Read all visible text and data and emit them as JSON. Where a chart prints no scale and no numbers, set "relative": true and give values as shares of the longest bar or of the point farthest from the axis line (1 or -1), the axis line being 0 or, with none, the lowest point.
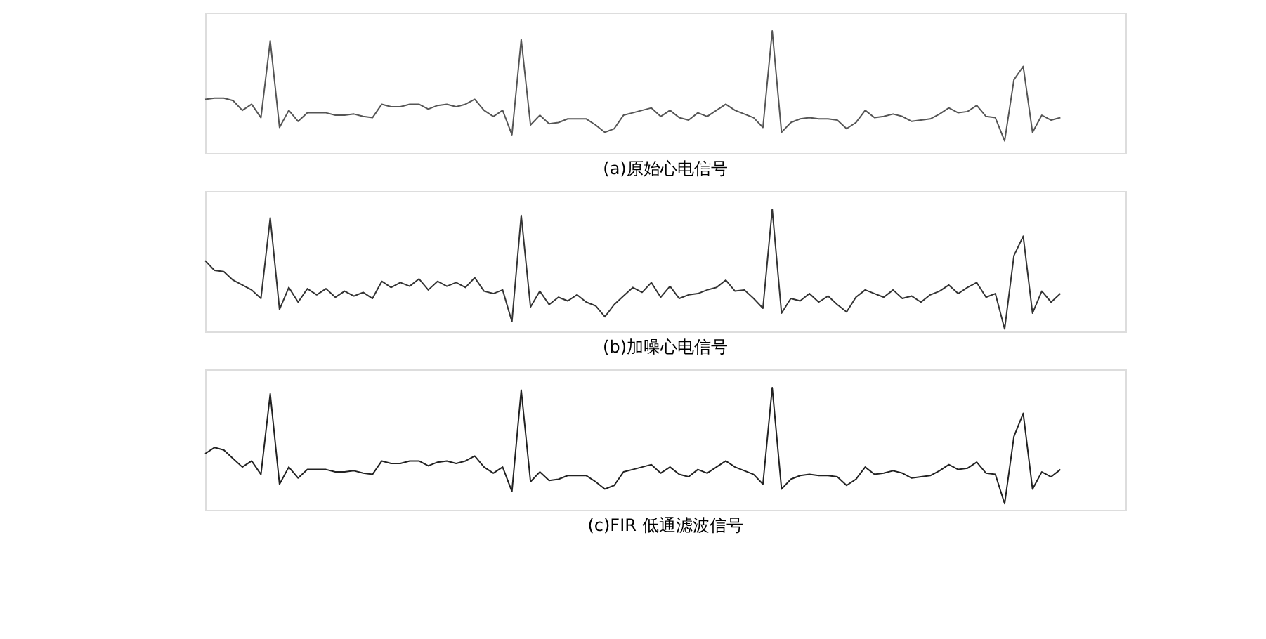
{
  "chart_data": [
    {
      "type": "line",
      "relative": true,
      "title": "(a)原始心电信号",
      "tick_labels": false,
      "marker": "none",
      "line_style": "solid",
      "categories": [
        null,
        null,
        null,
        null,
        null,
        null,
        null,
        null,
        null,
        null,
        null,
        null,
        null,
        null,
        null,
        null,
        null,
        null,
        null,
        null,
        null,
        null,
        null,
        null,
        null,
        null,
        null,
        null,
        null,
        null,
        null,
        null,
        null,
        null,
        null,
        null,
        null,
        null,
        null,
        null,
        null,
        null,
        null,
        null,
        null,
        null,
        null,
        null,
        null,
        null,
        null,
        null,
        null,
        null,
        null,
        null,
        null,
        null,
        null,
        null,
        null,
        null,
        null,
        null,
        null,
        null,
        null,
        null,
        null,
        null,
        null,
        null,
        null,
        null,
        null,
        null,
        null,
        null,
        null,
        null,
        null,
        null,
        null,
        null,
        null,
        null,
        null,
        null,
        null,
        null,
        null,
        null,
        null,
        null,
        null,
        null,
        null,
        null,
        null,
        null
      ],
      "series": [
        {
          "color": "#555555",
          "values": [
            0.44,
            0.45,
            0.45,
            0.43,
            0.35,
            0.4,
            0.29,
            0.92,
            0.21,
            0.35,
            0.26,
            0.33,
            0.33,
            0.33,
            0.31,
            0.31,
            0.32,
            0.3,
            0.29,
            0.4,
            0.38,
            0.38,
            0.4,
            0.4,
            0.36,
            0.39,
            0.4,
            0.38,
            0.4,
            0.44,
            0.35,
            0.3,
            0.35,
            0.15,
            0.93,
            0.23,
            0.31,
            0.24,
            0.25,
            0.28,
            0.28,
            0.28,
            0.23,
            0.17,
            0.2,
            0.31,
            0.33,
            0.35,
            0.37,
            0.3,
            0.35,
            0.29,
            0.27,
            0.33,
            0.3,
            0.35,
            0.4,
            0.35,
            0.32,
            0.29,
            0.21,
            1.0,
            0.17,
            0.25,
            0.28,
            0.29,
            0.28,
            0.28,
            0.27,
            0.2,
            0.25,
            0.35,
            0.29,
            0.3,
            0.32,
            0.3,
            0.26,
            0.27,
            0.28,
            0.32,
            0.37,
            0.33,
            0.34,
            0.39,
            0.3,
            0.29,
            0.1,
            0.6,
            0.71,
            0.17,
            0.31,
            0.27,
            0.29,
            null,
            null,
            null,
            null,
            null,
            null,
            null
          ]
        }
      ]
    },
    {
      "type": "line",
      "relative": true,
      "title": "(b)加噪心电信号",
      "tick_labels": false,
      "marker": "none",
      "line_style": "solid",
      "categories": [
        null,
        null,
        null,
        null,
        null,
        null,
        null,
        null,
        null,
        null,
        null,
        null,
        null,
        null,
        null,
        null,
        null,
        null,
        null,
        null,
        null,
        null,
        null,
        null,
        null,
        null,
        null,
        null,
        null,
        null,
        null,
        null,
        null,
        null,
        null,
        null,
        null,
        null,
        null,
        null,
        null,
        null,
        null,
        null,
        null,
        null,
        null,
        null,
        null,
        null,
        null,
        null,
        null,
        null,
        null,
        null,
        null,
        null,
        null,
        null,
        null,
        null,
        null,
        null,
        null,
        null,
        null,
        null,
        null,
        null,
        null,
        null,
        null,
        null,
        null,
        null,
        null,
        null,
        null,
        null,
        null,
        null,
        null,
        null,
        null,
        null,
        null,
        null,
        null,
        null,
        null,
        null,
        null,
        null,
        null,
        null,
        null,
        null,
        null,
        null
      ],
      "series": [
        {
          "color": "#333333",
          "values": [
            0.58,
            0.5,
            0.49,
            0.42,
            0.38,
            0.34,
            0.27,
            0.93,
            0.18,
            0.36,
            0.24,
            0.35,
            0.3,
            0.35,
            0.28,
            0.33,
            0.29,
            0.32,
            0.27,
            0.41,
            0.36,
            0.4,
            0.37,
            0.43,
            0.34,
            0.41,
            0.37,
            0.4,
            0.36,
            0.44,
            0.33,
            0.31,
            0.34,
            0.08,
            0.95,
            0.2,
            0.33,
            0.22,
            0.28,
            0.25,
            0.3,
            0.24,
            0.21,
            0.12,
            0.22,
            0.29,
            0.36,
            0.32,
            0.4,
            0.28,
            0.37,
            0.27,
            0.3,
            0.31,
            0.34,
            0.36,
            0.42,
            0.33,
            0.34,
            0.27,
            0.19,
            1.0,
            0.15,
            0.27,
            0.25,
            0.31,
            0.24,
            0.29,
            0.22,
            0.16,
            0.28,
            0.34,
            0.31,
            0.28,
            0.34,
            0.27,
            0.29,
            0.24,
            0.3,
            0.33,
            0.38,
            0.31,
            0.36,
            0.4,
            0.28,
            0.31,
            0.02,
            0.62,
            0.78,
            0.15,
            0.33,
            0.24,
            0.31,
            null,
            null,
            null,
            null,
            null,
            null,
            null
          ]
        }
      ]
    },
    {
      "type": "line",
      "relative": true,
      "title": "(c)FIR 低通滤波信号",
      "tick_labels": false,
      "marker": "none",
      "line_style": "solid",
      "categories": [
        null,
        null,
        null,
        null,
        null,
        null,
        null,
        null,
        null,
        null,
        null,
        null,
        null,
        null,
        null,
        null,
        null,
        null,
        null,
        null,
        null,
        null,
        null,
        null,
        null,
        null,
        null,
        null,
        null,
        null,
        null,
        null,
        null,
        null,
        null,
        null,
        null,
        null,
        null,
        null,
        null,
        null,
        null,
        null,
        null,
        null,
        null,
        null,
        null,
        null,
        null,
        null,
        null,
        null,
        null,
        null,
        null,
        null,
        null,
        null,
        null,
        null,
        null,
        null,
        null,
        null,
        null,
        null,
        null,
        null,
        null,
        null,
        null,
        null,
        null,
        null,
        null,
        null,
        null,
        null,
        null,
        null,
        null,
        null,
        null,
        null,
        null,
        null,
        null,
        null,
        null,
        null,
        null,
        null,
        null,
        null,
        null,
        null,
        null,
        null
      ],
      "series": [
        {
          "color": "#222222",
          "values": [
            0.46,
            0.51,
            0.49,
            0.42,
            0.35,
            0.4,
            0.29,
            0.95,
            0.21,
            0.35,
            0.26,
            0.33,
            0.33,
            0.33,
            0.31,
            0.31,
            0.32,
            0.3,
            0.29,
            0.4,
            0.38,
            0.38,
            0.4,
            0.4,
            0.36,
            0.39,
            0.4,
            0.38,
            0.4,
            0.44,
            0.35,
            0.3,
            0.35,
            0.15,
            0.98,
            0.23,
            0.31,
            0.24,
            0.25,
            0.28,
            0.28,
            0.28,
            0.23,
            0.17,
            0.2,
            0.31,
            0.33,
            0.35,
            0.37,
            0.3,
            0.35,
            0.29,
            0.27,
            0.33,
            0.3,
            0.35,
            0.4,
            0.35,
            0.32,
            0.29,
            0.21,
            1.0,
            0.17,
            0.25,
            0.28,
            0.29,
            0.28,
            0.28,
            0.27,
            0.2,
            0.25,
            0.35,
            0.29,
            0.3,
            0.32,
            0.3,
            0.26,
            0.27,
            0.28,
            0.32,
            0.37,
            0.33,
            0.34,
            0.39,
            0.3,
            0.29,
            0.05,
            0.6,
            0.79,
            0.17,
            0.31,
            0.27,
            0.33,
            null,
            null,
            null,
            null,
            null,
            null,
            null
          ]
        }
      ]
    }
  ]
}
